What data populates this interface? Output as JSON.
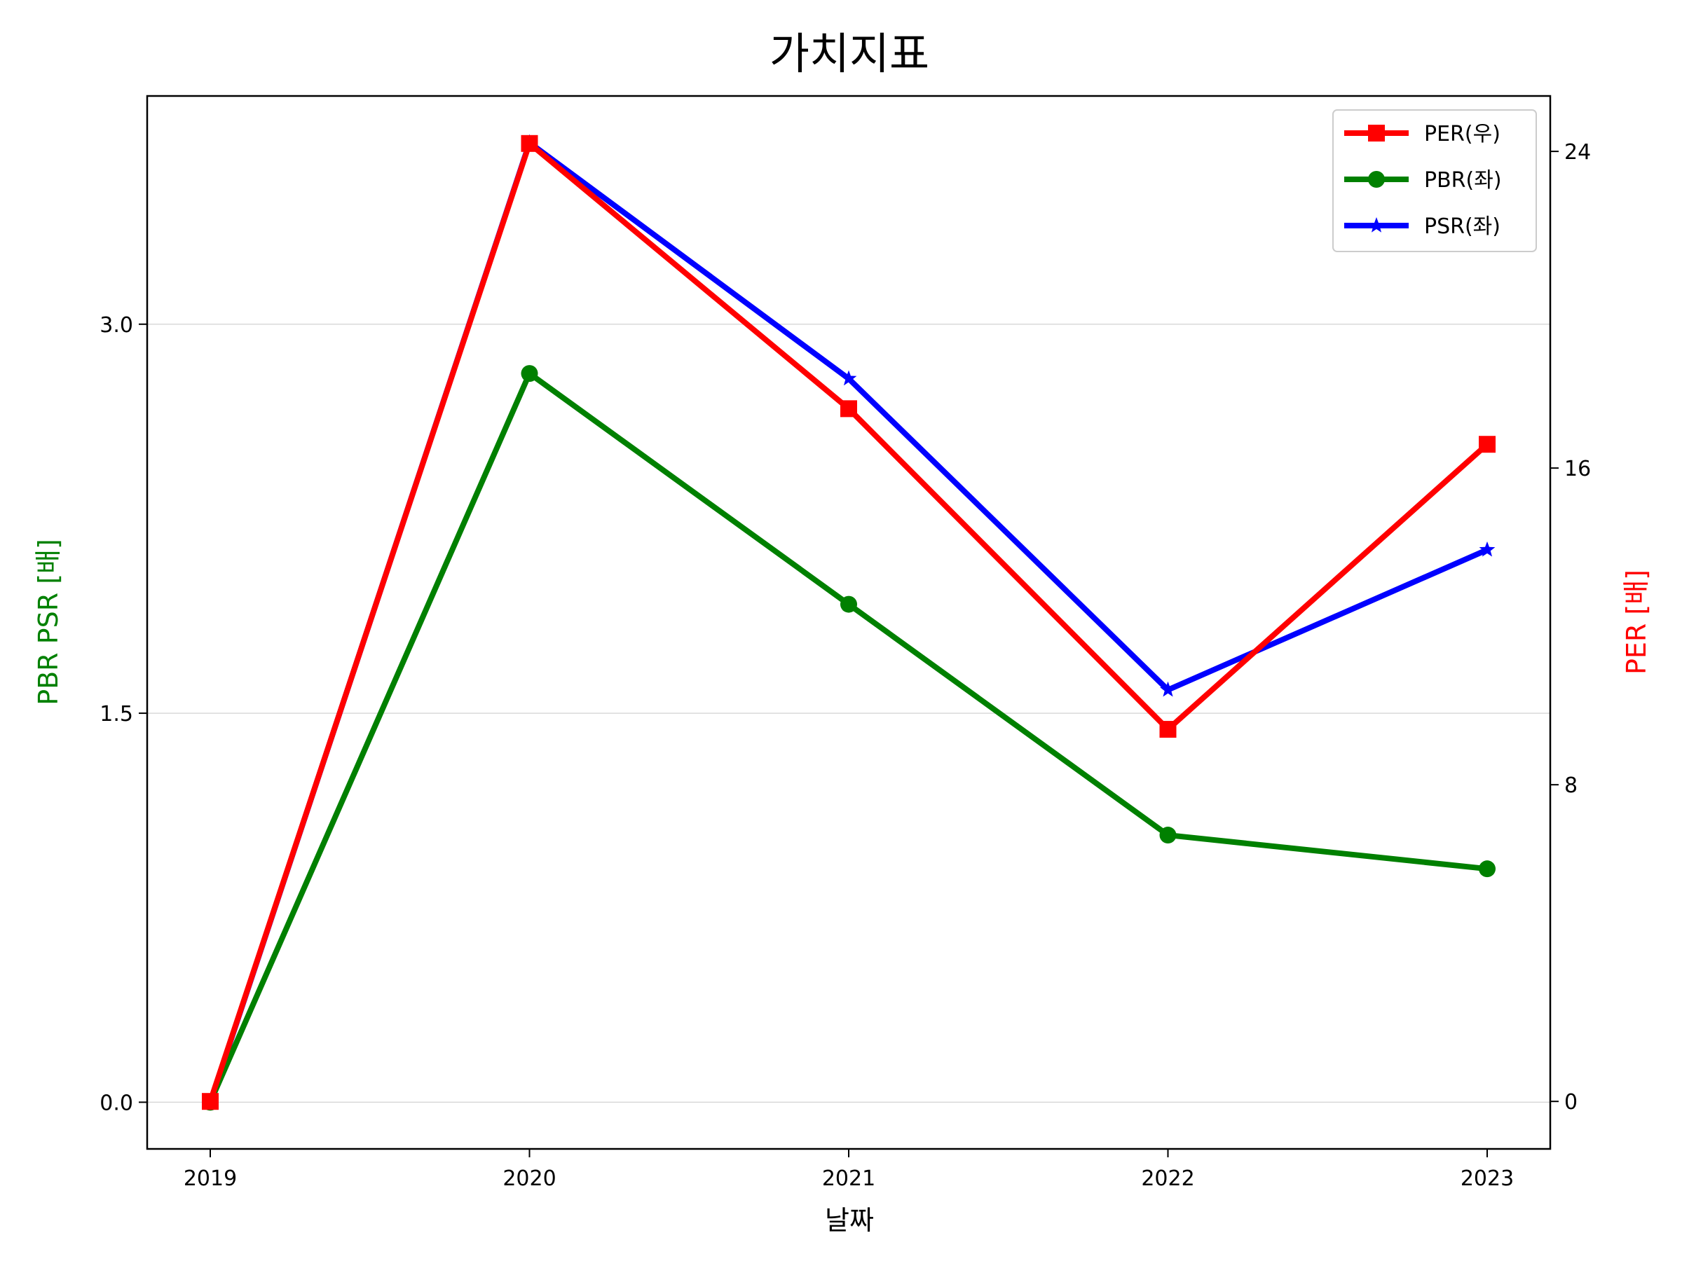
{
  "chart_data": {
    "type": "line",
    "title": "가치지표",
    "xlabel": "날짜",
    "ylabel_left": "PBR PSR [배]",
    "ylabel_right": "PER [배]",
    "categories": [
      "2019",
      "2020",
      "2021",
      "2022",
      "2023"
    ],
    "ylim_left": [
      -0.18,
      3.88
    ],
    "yticks_left": [
      "0.0",
      "1.5",
      "3.0"
    ],
    "ylim_right": [
      -1.2,
      25.4
    ],
    "yticks_right": [
      "0",
      "8",
      "16",
      "24"
    ],
    "grid": true,
    "legend_position": "top-right",
    "series": [
      {
        "name": "PER(우)",
        "axis": "right",
        "color": "#ff0000",
        "marker": "square",
        "values": [
          0,
          24.2,
          17.5,
          9.4,
          16.6
        ]
      },
      {
        "name": "PBR(좌)",
        "axis": "left",
        "color": "#008000",
        "marker": "circle",
        "values": [
          0,
          2.81,
          1.92,
          1.03,
          0.9
        ]
      },
      {
        "name": "PSR(좌)",
        "axis": "left",
        "color": "#0000ff",
        "marker": "star",
        "values": [
          0,
          3.7,
          2.79,
          1.59,
          2.13
        ]
      }
    ],
    "colors": {
      "left_axis_label": "#008000",
      "right_axis_label": "#ff0000",
      "grid": "#d9d9d9"
    }
  }
}
